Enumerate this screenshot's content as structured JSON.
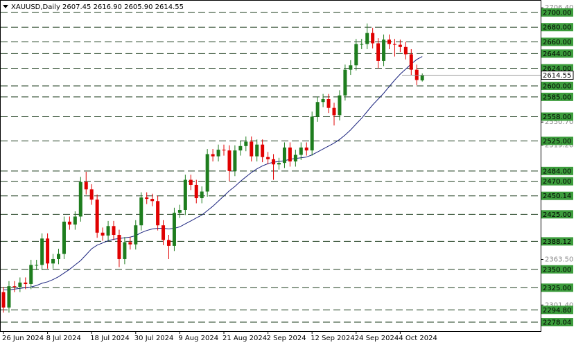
{
  "chart_data": {
    "type": "candlestick",
    "title": "XAUUSD,Daily  2607.45 2616.90 2605.90 2614.55",
    "categories": [
      "26 Jun 2024",
      null,
      null,
      null,
      null,
      null,
      null,
      null,
      "8 Jul 2024",
      null,
      null,
      null,
      null,
      null,
      null,
      null,
      "18 Jul 2024",
      null,
      null,
      null,
      null,
      null,
      null,
      null,
      "30 Jul 2024",
      null,
      null,
      null,
      null,
      null,
      null,
      null,
      "9 Aug 2024",
      null,
      null,
      null,
      null,
      null,
      null,
      null,
      "21 Aug 2024",
      null,
      null,
      null,
      null,
      null,
      null,
      null,
      "2 Sep 2024",
      null,
      null,
      null,
      null,
      null,
      null,
      null,
      "12 Sep 2024",
      null,
      null,
      null,
      null,
      null,
      null,
      null,
      "24 Sep 2024",
      null,
      null,
      null,
      null,
      null,
      null,
      null,
      "4 Oct 2024",
      null,
      null,
      null,
      null
    ],
    "open": [
      2319,
      2298,
      2327,
      2326,
      2332,
      2330,
      2356,
      2356,
      2392,
      2358,
      2364,
      2371,
      2415,
      2411,
      2422,
      2469,
      2459,
      2445,
      2400,
      2396,
      2409,
      2397,
      2364,
      2387,
      2384,
      2410,
      2448,
      2446,
      2443,
      2410,
      2390,
      2382,
      2427,
      2431,
      2472,
      2465,
      2447,
      2456,
      2507,
      2504,
      2513,
      2512,
      2484,
      2512,
      2518,
      2524,
      2504,
      2520,
      2503,
      2500,
      2493,
      2495,
      2516,
      2497,
      2506,
      2516,
      2512,
      2558,
      2578,
      2582,
      2570,
      2560,
      2587,
      2622,
      2628,
      2657,
      2657,
      2672,
      2658,
      2634,
      2663,
      2657,
      2656,
      2653,
      2643,
      2622,
      2607.45
    ],
    "high": [
      2326,
      2334,
      2334,
      2339,
      2339,
      2363,
      2363,
      2399,
      2399,
      2371,
      2378,
      2422,
      2422,
      2429,
      2476,
      2483,
      2466,
      2452,
      2407,
      2416,
      2416,
      2404,
      2394,
      2394,
      2417,
      2455,
      2455,
      2453,
      2450,
      2417,
      2397,
      2434,
      2438,
      2479,
      2479,
      2472,
      2463,
      2514,
      2514,
      2520,
      2520,
      2519,
      2519,
      2525,
      2531,
      2531,
      2527,
      2527,
      2510,
      2507,
      2502,
      2523,
      2523,
      2513,
      2523,
      2523,
      2565,
      2585,
      2589,
      2589,
      2577,
      2594,
      2629,
      2635,
      2664,
      2664,
      2685,
      2679,
      2665,
      2670,
      2670,
      2664,
      2663,
      2660,
      2650,
      2629,
      2616.9
    ],
    "low": [
      2291,
      2291,
      2319,
      2319,
      2323,
      2323,
      2349,
      2349,
      2351,
      2351,
      2357,
      2364,
      2404,
      2404,
      2415,
      2452,
      2438,
      2393,
      2389,
      2389,
      2390,
      2353,
      2357,
      2377,
      2377,
      2403,
      2439,
      2436,
      2403,
      2383,
      2364,
      2375,
      2420,
      2424,
      2458,
      2440,
      2440,
      2449,
      2497,
      2497,
      2505,
      2470,
      2477,
      2505,
      2511,
      2497,
      2497,
      2496,
      2493,
      2472,
      2486,
      2488,
      2490,
      2490,
      2499,
      2505,
      2505,
      2551,
      2571,
      2563,
      2546,
      2553,
      2580,
      2615,
      2621,
      2650,
      2650,
      2651,
      2624,
      2627,
      2650,
      2640,
      2646,
      2636,
      2615,
      2601,
      2605.9
    ],
    "close": [
      2298,
      2327,
      2326,
      2332,
      2330,
      2356,
      2356,
      2392,
      2358,
      2364,
      2371,
      2415,
      2411,
      2422,
      2469,
      2459,
      2445,
      2400,
      2396,
      2409,
      2397,
      2364,
      2387,
      2384,
      2410,
      2448,
      2446,
      2443,
      2410,
      2390,
      2382,
      2427,
      2431,
      2472,
      2465,
      2447,
      2456,
      2507,
      2504,
      2513,
      2512,
      2484,
      2512,
      2518,
      2524,
      2504,
      2520,
      2503,
      2500,
      2493,
      2495,
      2516,
      2497,
      2506,
      2516,
      2512,
      2558,
      2578,
      2582,
      2570,
      2560,
      2587,
      2622,
      2628,
      2657,
      2657,
      2672,
      2658,
      2634,
      2663,
      2657,
      2656,
      2653,
      2643,
      2622,
      2608,
      2614.55
    ],
    "moving_average": [
      2322,
      2322,
      2323,
      2324,
      2325,
      2326,
      2328,
      2331,
      2333,
      2336,
      2340,
      2345,
      2350,
      2356,
      2362,
      2370,
      2378,
      2383,
      2386,
      2389,
      2391,
      2392,
      2393,
      2394,
      2396,
      2400,
      2403,
      2405,
      2406,
      2406,
      2405,
      2406,
      2408,
      2412,
      2416,
      2420,
      2424,
      2430,
      2436,
      2443,
      2450,
      2457,
      2463,
      2470,
      2476,
      2482,
      2487,
      2491,
      2494,
      2496,
      2497,
      2498,
      2500,
      2501,
      2502,
      2503,
      2506,
      2510,
      2514,
      2518,
      2522,
      2527,
      2533,
      2540,
      2548,
      2556,
      2565,
      2574,
      2582,
      2590,
      2599,
      2608,
      2616,
      2623,
      2630,
      2636,
      2640
    ],
    "up_color": "#1e7d1e",
    "down_color": "#e00000",
    "ma_color": "#1a237e",
    "level_color": "#3c9c3c",
    "ylim": [
      2265.8,
      2717.0
    ],
    "yticks": [
      {
        "value": 2706.4,
        "label": "2706.40"
      },
      {
        "value": 2550.7,
        "label": "2550.70"
      },
      {
        "value": 2519.2,
        "label": "2519.20"
      },
      {
        "value": 2363.5,
        "label": "2363.50"
      },
      {
        "value": 2301.4,
        "label": "2301.40"
      }
    ],
    "levels": [
      {
        "value": 2700,
        "label": "2700.00"
      },
      {
        "value": 2680,
        "label": "2680.00"
      },
      {
        "value": 2660,
        "label": "2660.00"
      },
      {
        "value": 2644,
        "label": "2644.00"
      },
      {
        "value": 2624,
        "label": "2624.00"
      },
      {
        "value": 2600,
        "label": "2600.00"
      },
      {
        "value": 2585,
        "label": "2585.00"
      },
      {
        "value": 2558,
        "label": "2558.00"
      },
      {
        "value": 2525,
        "label": "2525.00"
      },
      {
        "value": 2484,
        "label": "2484.00"
      },
      {
        "value": 2470,
        "label": "2470.00"
      },
      2450.14,
      {
        "value": 2425,
        "label": "2425.00"
      },
      2388.12,
      {
        "value": 2350,
        "label": "2350.00"
      },
      {
        "value": 2325,
        "label": "2325.00"
      },
      {
        "value": 2294.8,
        "label": "2294.80"
      },
      2278.04
    ],
    "current_price": 2614.55
  }
}
